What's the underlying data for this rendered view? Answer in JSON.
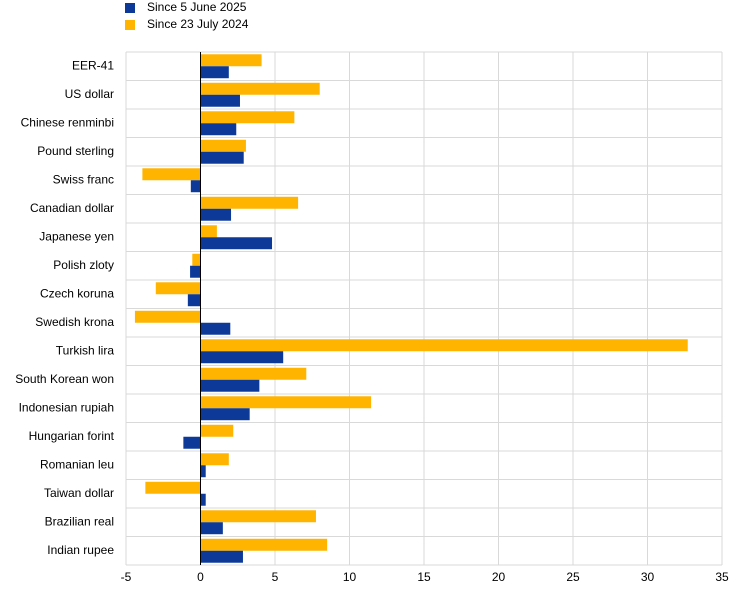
{
  "chart_data": {
    "type": "hbar",
    "categories": [
      "EER-41",
      "US dollar",
      "Chinese renminbi",
      "Pound sterling",
      "Swiss franc",
      "Canadian dollar",
      "Japanese yen",
      "Polish zloty",
      "Czech koruna",
      "Swedish krona",
      "Turkish lira",
      "South Korean won",
      "Indonesian rupiah",
      "Hungarian forint",
      "Romanian leu",
      "Taiwan dollar",
      "Brazilian real",
      "Indian rupee"
    ],
    "series": [
      {
        "name": "Since 5 June 2025",
        "color": "#0d3a99",
        "values": [
          1.9,
          2.65,
          2.4,
          2.9,
          -0.65,
          2.05,
          4.8,
          -0.7,
          -0.85,
          2.0,
          5.55,
          3.95,
          3.3,
          -1.15,
          0.35,
          0.35,
          1.5,
          2.85
        ]
      },
      {
        "name": "Since 23 July 2024",
        "color": "#ffb400",
        "values": [
          4.1,
          8.0,
          6.3,
          3.05,
          -3.9,
          6.55,
          1.1,
          -0.55,
          -3.0,
          -4.4,
          32.7,
          7.1,
          11.45,
          2.2,
          1.9,
          -3.7,
          7.75,
          8.5
        ]
      }
    ],
    "xlim": [
      -5,
      35
    ],
    "xticks": [
      -5,
      0,
      5,
      10,
      15,
      20,
      25,
      30,
      35
    ],
    "grid": true
  }
}
